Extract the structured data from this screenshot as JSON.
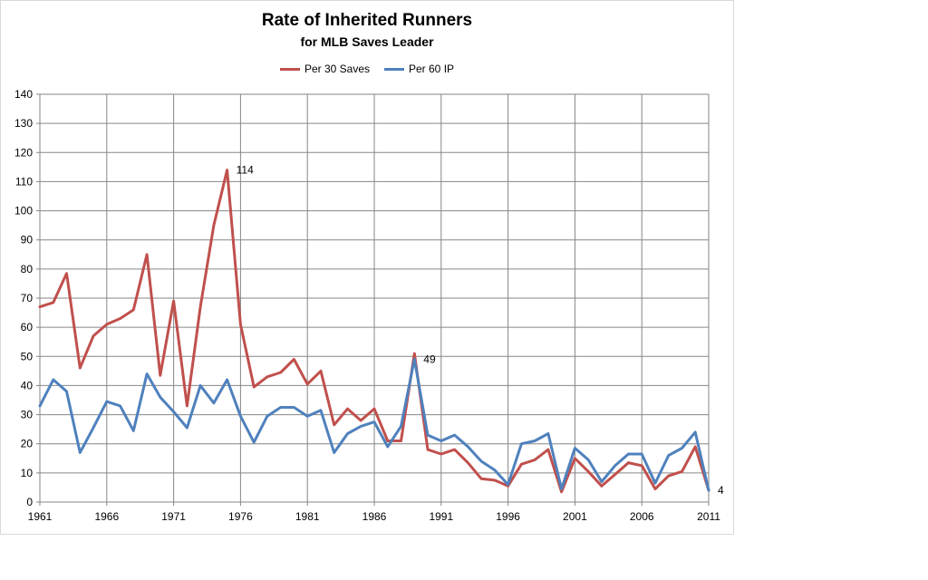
{
  "colors": {
    "red": "#c0504d",
    "blue": "#4f81bd",
    "grid": "#868686",
    "axis": "#868686"
  },
  "chart_data": {
    "type": "line",
    "title": "Rate of Inherited Runners",
    "subtitle": "for MLB Saves Leader",
    "x": [
      1961,
      1962,
      1963,
      1964,
      1965,
      1966,
      1967,
      1968,
      1969,
      1970,
      1971,
      1972,
      1973,
      1974,
      1975,
      1976,
      1977,
      1978,
      1979,
      1980,
      1981,
      1982,
      1983,
      1984,
      1985,
      1986,
      1987,
      1988,
      1989,
      1990,
      1991,
      1992,
      1993,
      1994,
      1995,
      1996,
      1997,
      1998,
      1999,
      2000,
      2001,
      2002,
      2003,
      2004,
      2005,
      2006,
      2007,
      2008,
      2009,
      2010,
      2011
    ],
    "xticks": [
      "1961",
      "1966",
      "1971",
      "1976",
      "1981",
      "1986",
      "1991",
      "1996",
      "2001",
      "2006",
      "2011"
    ],
    "yticks": [
      "0",
      "10",
      "20",
      "30",
      "40",
      "50",
      "60",
      "70",
      "80",
      "90",
      "100",
      "110",
      "120",
      "130",
      "140"
    ],
    "ylim": [
      0,
      140
    ],
    "xlim": [
      1961,
      2011
    ],
    "grid": true,
    "legend_position": "top",
    "series": [
      {
        "name": "Per 30 Saves",
        "color": "#c0504d",
        "values": [
          67,
          68.5,
          78.5,
          46,
          57,
          61,
          63,
          66,
          85,
          43.5,
          69,
          33,
          67,
          95,
          114,
          61,
          39.5,
          43,
          44.5,
          49,
          40.5,
          45,
          26.5,
          32,
          28,
          32,
          21,
          21,
          51,
          18,
          16.5,
          18,
          13.5,
          8,
          7.5,
          5.5,
          13,
          14.5,
          18,
          3.5,
          15,
          10.5,
          5.5,
          9.5,
          13.5,
          12.5,
          4.5,
          9,
          10.5,
          19,
          4
        ]
      },
      {
        "name": "Per 60 IP",
        "color": "#4f81bd",
        "values": [
          33,
          42,
          38,
          17,
          25.5,
          34.5,
          33,
          24.5,
          44,
          36,
          31,
          25.5,
          40,
          34,
          42,
          29.5,
          20.5,
          29.5,
          32.5,
          32.5,
          29.5,
          31.5,
          17,
          23.5,
          26,
          27.5,
          19,
          26,
          49,
          23,
          21,
          23,
          19,
          14,
          11,
          6,
          20,
          21,
          23.5,
          4.5,
          18.5,
          14.5,
          7,
          12.5,
          16.5,
          16.5,
          6.5,
          16,
          18.5,
          24,
          4
        ]
      }
    ],
    "annotations": [
      {
        "text": "114",
        "x": 1975,
        "y": 114
      },
      {
        "text": "49",
        "x": 1989,
        "y": 49
      },
      {
        "text": "4",
        "x": 2011,
        "y": 4
      }
    ]
  }
}
